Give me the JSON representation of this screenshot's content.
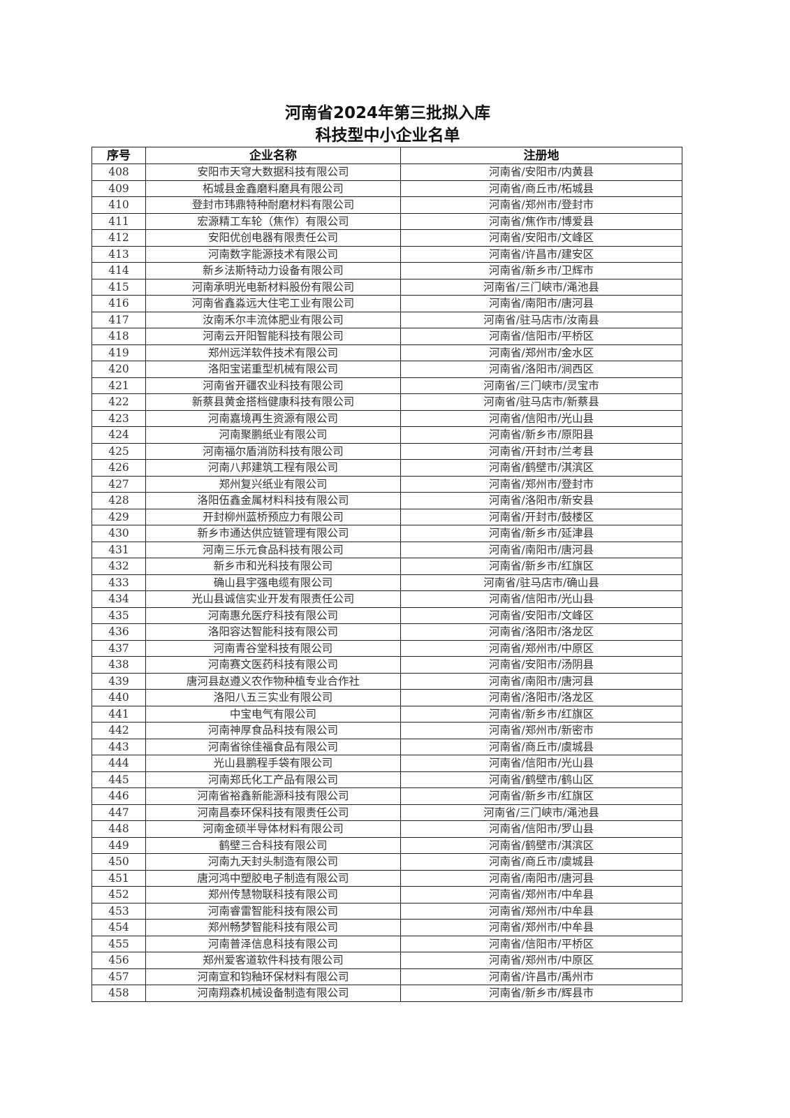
{
  "document": {
    "title_line1": "河南省2024年第三批拟入库",
    "title_line2": "科技型中小企业名单",
    "columns": [
      "序号",
      "企业名称",
      "注册地"
    ],
    "rows": [
      [
        "408",
        "安阳市天穹大数据科技有限公司",
        "河南省/安阳市/内黄县"
      ],
      [
        "409",
        "柘城县金鑫磨料磨具有限公司",
        "河南省/商丘市/柘城县"
      ],
      [
        "410",
        "登封市玮鼎特种耐磨材料有限公司",
        "河南省/郑州市/登封市"
      ],
      [
        "411",
        "宏源精工车轮（焦作）有限公司",
        "河南省/焦作市/博爱县"
      ],
      [
        "412",
        "安阳优创电器有限责任公司",
        "河南省/安阳市/文峰区"
      ],
      [
        "413",
        "河南数字能源技术有限公司",
        "河南省/许昌市/建安区"
      ],
      [
        "414",
        "新乡法斯特动力设备有限公司",
        "河南省/新乡市/卫辉市"
      ],
      [
        "415",
        "河南承明光电新材料股份有限公司",
        "河南省/三门峡市/渑池县"
      ],
      [
        "416",
        "河南省鑫淼远大住宅工业有限公司",
        "河南省/南阳市/唐河县"
      ],
      [
        "417",
        "汝南禾尔丰流体肥业有限公司",
        "河南省/驻马店市/汝南县"
      ],
      [
        "418",
        "河南云开阳智能科技有限公司",
        "河南省/信阳市/平桥区"
      ],
      [
        "419",
        "郑州远洋软件技术有限公司",
        "河南省/郑州市/金水区"
      ],
      [
        "420",
        "洛阳宝诺重型机械有限公司",
        "河南省/洛阳市/涧西区"
      ],
      [
        "421",
        "河南省开疆农业科技有限公司",
        "河南省/三门峡市/灵宝市"
      ],
      [
        "422",
        "新蔡县黄金搭档健康科技有限公司",
        "河南省/驻马店市/新蔡县"
      ],
      [
        "423",
        "河南嘉境再生资源有限公司",
        "河南省/信阳市/光山县"
      ],
      [
        "424",
        "河南聚鹏纸业有限公司",
        "河南省/新乡市/原阳县"
      ],
      [
        "425",
        "河南福尔盾消防科技有限公司",
        "河南省/开封市/兰考县"
      ],
      [
        "426",
        "河南八邦建筑工程有限公司",
        "河南省/鹤壁市/淇滨区"
      ],
      [
        "427",
        "郑州复兴纸业有限公司",
        "河南省/郑州市/登封市"
      ],
      [
        "428",
        "洛阳伍鑫金属材料科技有限公司",
        "河南省/洛阳市/新安县"
      ],
      [
        "429",
        "开封柳州蓝桥预应力有限公司",
        "河南省/开封市/鼓楼区"
      ],
      [
        "430",
        "新乡市通达供应链管理有限公司",
        "河南省/新乡市/延津县"
      ],
      [
        "431",
        "河南三乐元食品科技有限公司",
        "河南省/南阳市/唐河县"
      ],
      [
        "432",
        "新乡市和光科技有限公司",
        "河南省/新乡市/红旗区"
      ],
      [
        "433",
        "确山县宇强电缆有限公司",
        "河南省/驻马店市/确山县"
      ],
      [
        "434",
        "光山县诚信实业开发有限责任公司",
        "河南省/信阳市/光山县"
      ],
      [
        "435",
        "河南惠允医疗科技有限公司",
        "河南省/安阳市/文峰区"
      ],
      [
        "436",
        "洛阳容达智能科技有限公司",
        "河南省/洛阳市/洛龙区"
      ],
      [
        "437",
        "河南青谷堂科技有限公司",
        "河南省/郑州市/中原区"
      ],
      [
        "438",
        "河南赛文医药科技有限公司",
        "河南省/安阳市/汤阴县"
      ],
      [
        "439",
        "唐河县赵遵义农作物种植专业合作社",
        "河南省/南阳市/唐河县"
      ],
      [
        "440",
        "洛阳八五三实业有限公司",
        "河南省/洛阳市/洛龙区"
      ],
      [
        "441",
        "中宝电气有限公司",
        "河南省/新乡市/红旗区"
      ],
      [
        "442",
        "河南神厚食品科技有限公司",
        "河南省/郑州市/新密市"
      ],
      [
        "443",
        "河南省徐佳福食品有限公司",
        "河南省/商丘市/虞城县"
      ],
      [
        "444",
        "光山县鹏程手袋有限公司",
        "河南省/信阳市/光山县"
      ],
      [
        "445",
        "河南郑氏化工产品有限公司",
        "河南省/鹤壁市/鹤山区"
      ],
      [
        "446",
        "河南省裕鑫新能源科技有限公司",
        "河南省/新乡市/红旗区"
      ],
      [
        "447",
        "河南昌泰环保科技有限责任公司",
        "河南省/三门峡市/渑池县"
      ],
      [
        "448",
        "河南金硕半导体材料有限公司",
        "河南省/信阳市/罗山县"
      ],
      [
        "449",
        "鹤壁三合科技有限公司",
        "河南省/鹤壁市/淇滨区"
      ],
      [
        "450",
        "河南九天封头制造有限公司",
        "河南省/商丘市/虞城县"
      ],
      [
        "451",
        "唐河鸿中塑胶电子制造有限公司",
        "河南省/南阳市/唐河县"
      ],
      [
        "452",
        "郑州传慧物联科技有限公司",
        "河南省/郑州市/中牟县"
      ],
      [
        "453",
        "河南睿雷智能科技有限公司",
        "河南省/郑州市/中牟县"
      ],
      [
        "454",
        "郑州畅梦智能科技有限公司",
        "河南省/郑州市/中牟县"
      ],
      [
        "455",
        "河南普泽信息科技有限公司",
        "河南省/信阳市/平桥区"
      ],
      [
        "456",
        "郑州爱客道软件科技有限公司",
        "河南省/郑州市/中原区"
      ],
      [
        "457",
        "河南宣和钧釉环保材料有限公司",
        "河南省/许昌市/禹州市"
      ],
      [
        "458",
        "河南翔森机械设备制造有限公司",
        "河南省/新乡市/辉县市"
      ]
    ]
  }
}
